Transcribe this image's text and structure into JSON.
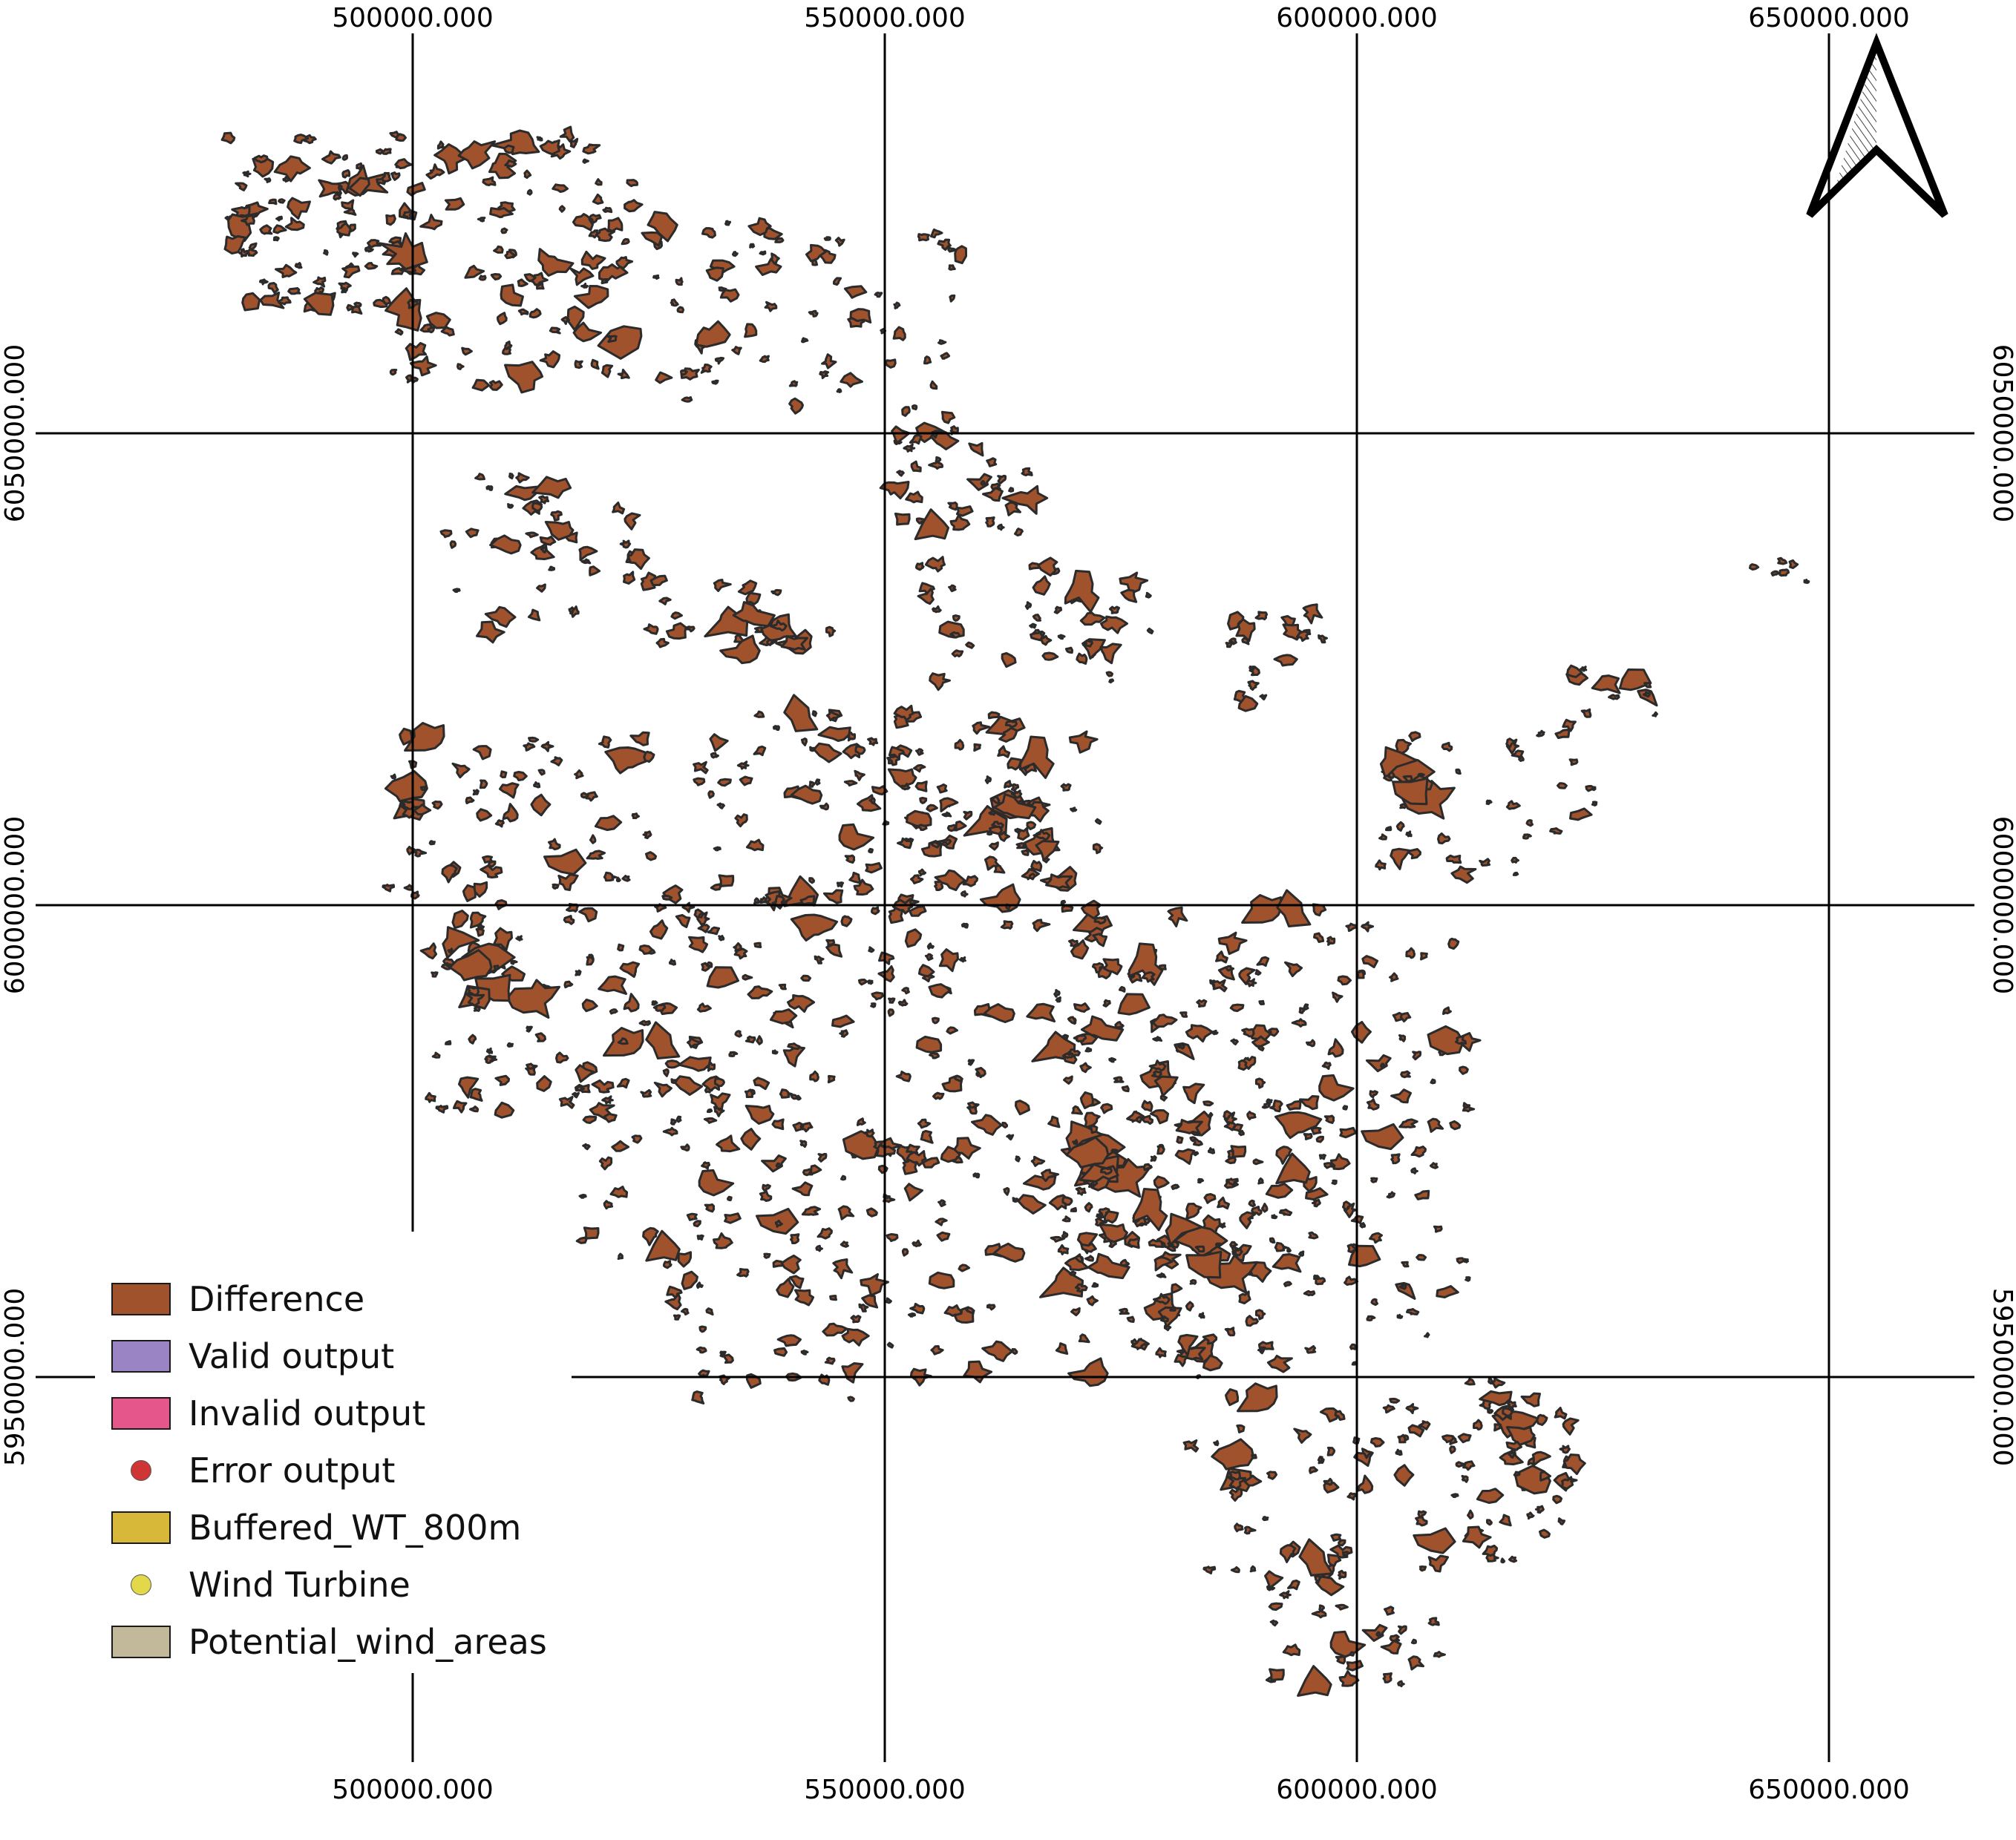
{
  "map": {
    "x_labels": [
      "500000.000",
      "550000.000",
      "600000.000",
      "650000.000"
    ],
    "y_labels": [
      "6050000.000",
      "6000000.000",
      "5950000.000"
    ],
    "feature_color": "#a0522d",
    "north_arrow_icon": "north-arrow-icon"
  },
  "legend": {
    "items": [
      {
        "label": "Difference",
        "color": "#a0522d",
        "symbol": "box"
      },
      {
        "label": "Valid output",
        "color": "#9b84c4",
        "symbol": "box"
      },
      {
        "label": "Invalid output",
        "color": "#e5568a",
        "symbol": "box"
      },
      {
        "label": "Error output",
        "color": "#d03535",
        "symbol": "dot"
      },
      {
        "label": "Buffered_WT_800m",
        "color": "#d8b838",
        "symbol": "box"
      },
      {
        "label": "Wind Turbine",
        "color": "#e3d84a",
        "symbol": "dot"
      },
      {
        "label": "Potential_wind_areas",
        "color": "#c2b99a",
        "symbol": "box"
      }
    ]
  }
}
